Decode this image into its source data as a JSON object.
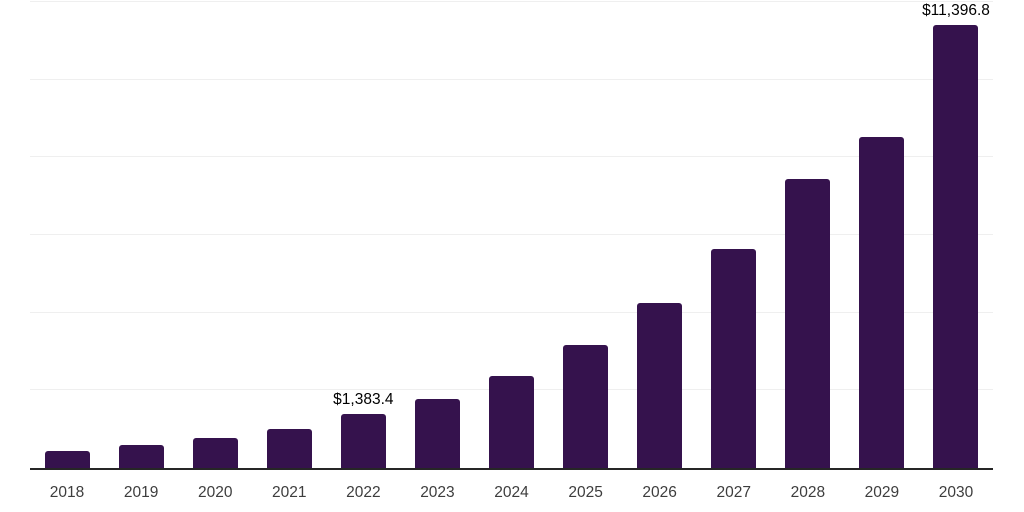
{
  "chart_data": {
    "type": "bar",
    "title": "",
    "xlabel": "",
    "ylabel": "",
    "categories": [
      "2018",
      "2019",
      "2020",
      "2021",
      "2022",
      "2023",
      "2024",
      "2025",
      "2026",
      "2027",
      "2028",
      "2029",
      "2030"
    ],
    "values": [
      430,
      580,
      775,
      1015,
      1383.4,
      1780,
      2370,
      3180,
      4240,
      5640,
      7440,
      8520,
      11396.8
    ],
    "value_labels": [
      "",
      "",
      "",
      "",
      "$1,383.4",
      "",
      "",
      "",
      "",
      "",
      "",
      "",
      "$11,396.8"
    ],
    "ylim": [
      0,
      12000
    ],
    "gridline_step": 2000,
    "grid": true,
    "y_axis_tick_labels_visible": false,
    "legend_position": "none",
    "colors": {
      "bar": "#35124d",
      "axis": "#262626",
      "gridline": "#efefef",
      "tick_label": "#3d3d3d",
      "data_label": "#000000",
      "background": "#ffffff"
    }
  }
}
